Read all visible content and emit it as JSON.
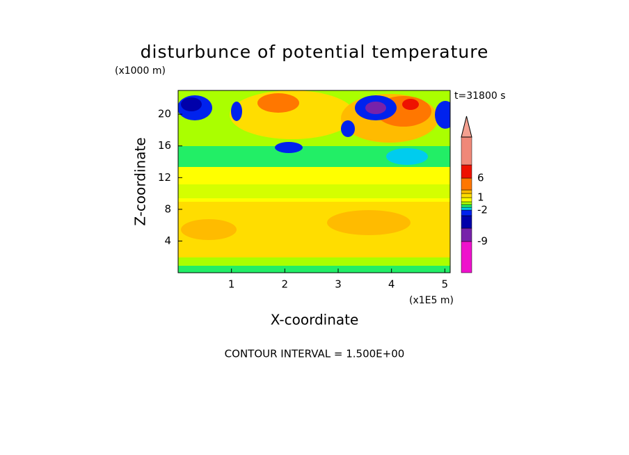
{
  "chart_data": {
    "type": "contour",
    "title": "disturbunce of potential temperature",
    "y_unit": "(x1000 m)",
    "x_unit": "(x1E5 m)",
    "time_label": "t=31800 s",
    "xlabel": "X-coordinate",
    "ylabel": "Z-coordinate",
    "footer": "CONTOUR INTERVAL = 1.500E+00",
    "xlim": [
      0,
      5.1
    ],
    "ylim": [
      0,
      23
    ],
    "xticks": [
      1,
      2,
      3,
      4,
      5
    ],
    "yticks": [
      4,
      8,
      12,
      16,
      20
    ],
    "colorbar": {
      "colors": [
        "#ee11cc",
        "#7722aa",
        "#0000aa",
        "#0022ee",
        "#00ccee",
        "#22ee66",
        "#aaff00",
        "#ffff00",
        "#ffdd00",
        "#ffbb00",
        "#ff7700",
        "#ee1100",
        "#f08878",
        "#f4a090"
      ],
      "labels": [
        6,
        1,
        -2,
        -9
      ]
    }
  }
}
